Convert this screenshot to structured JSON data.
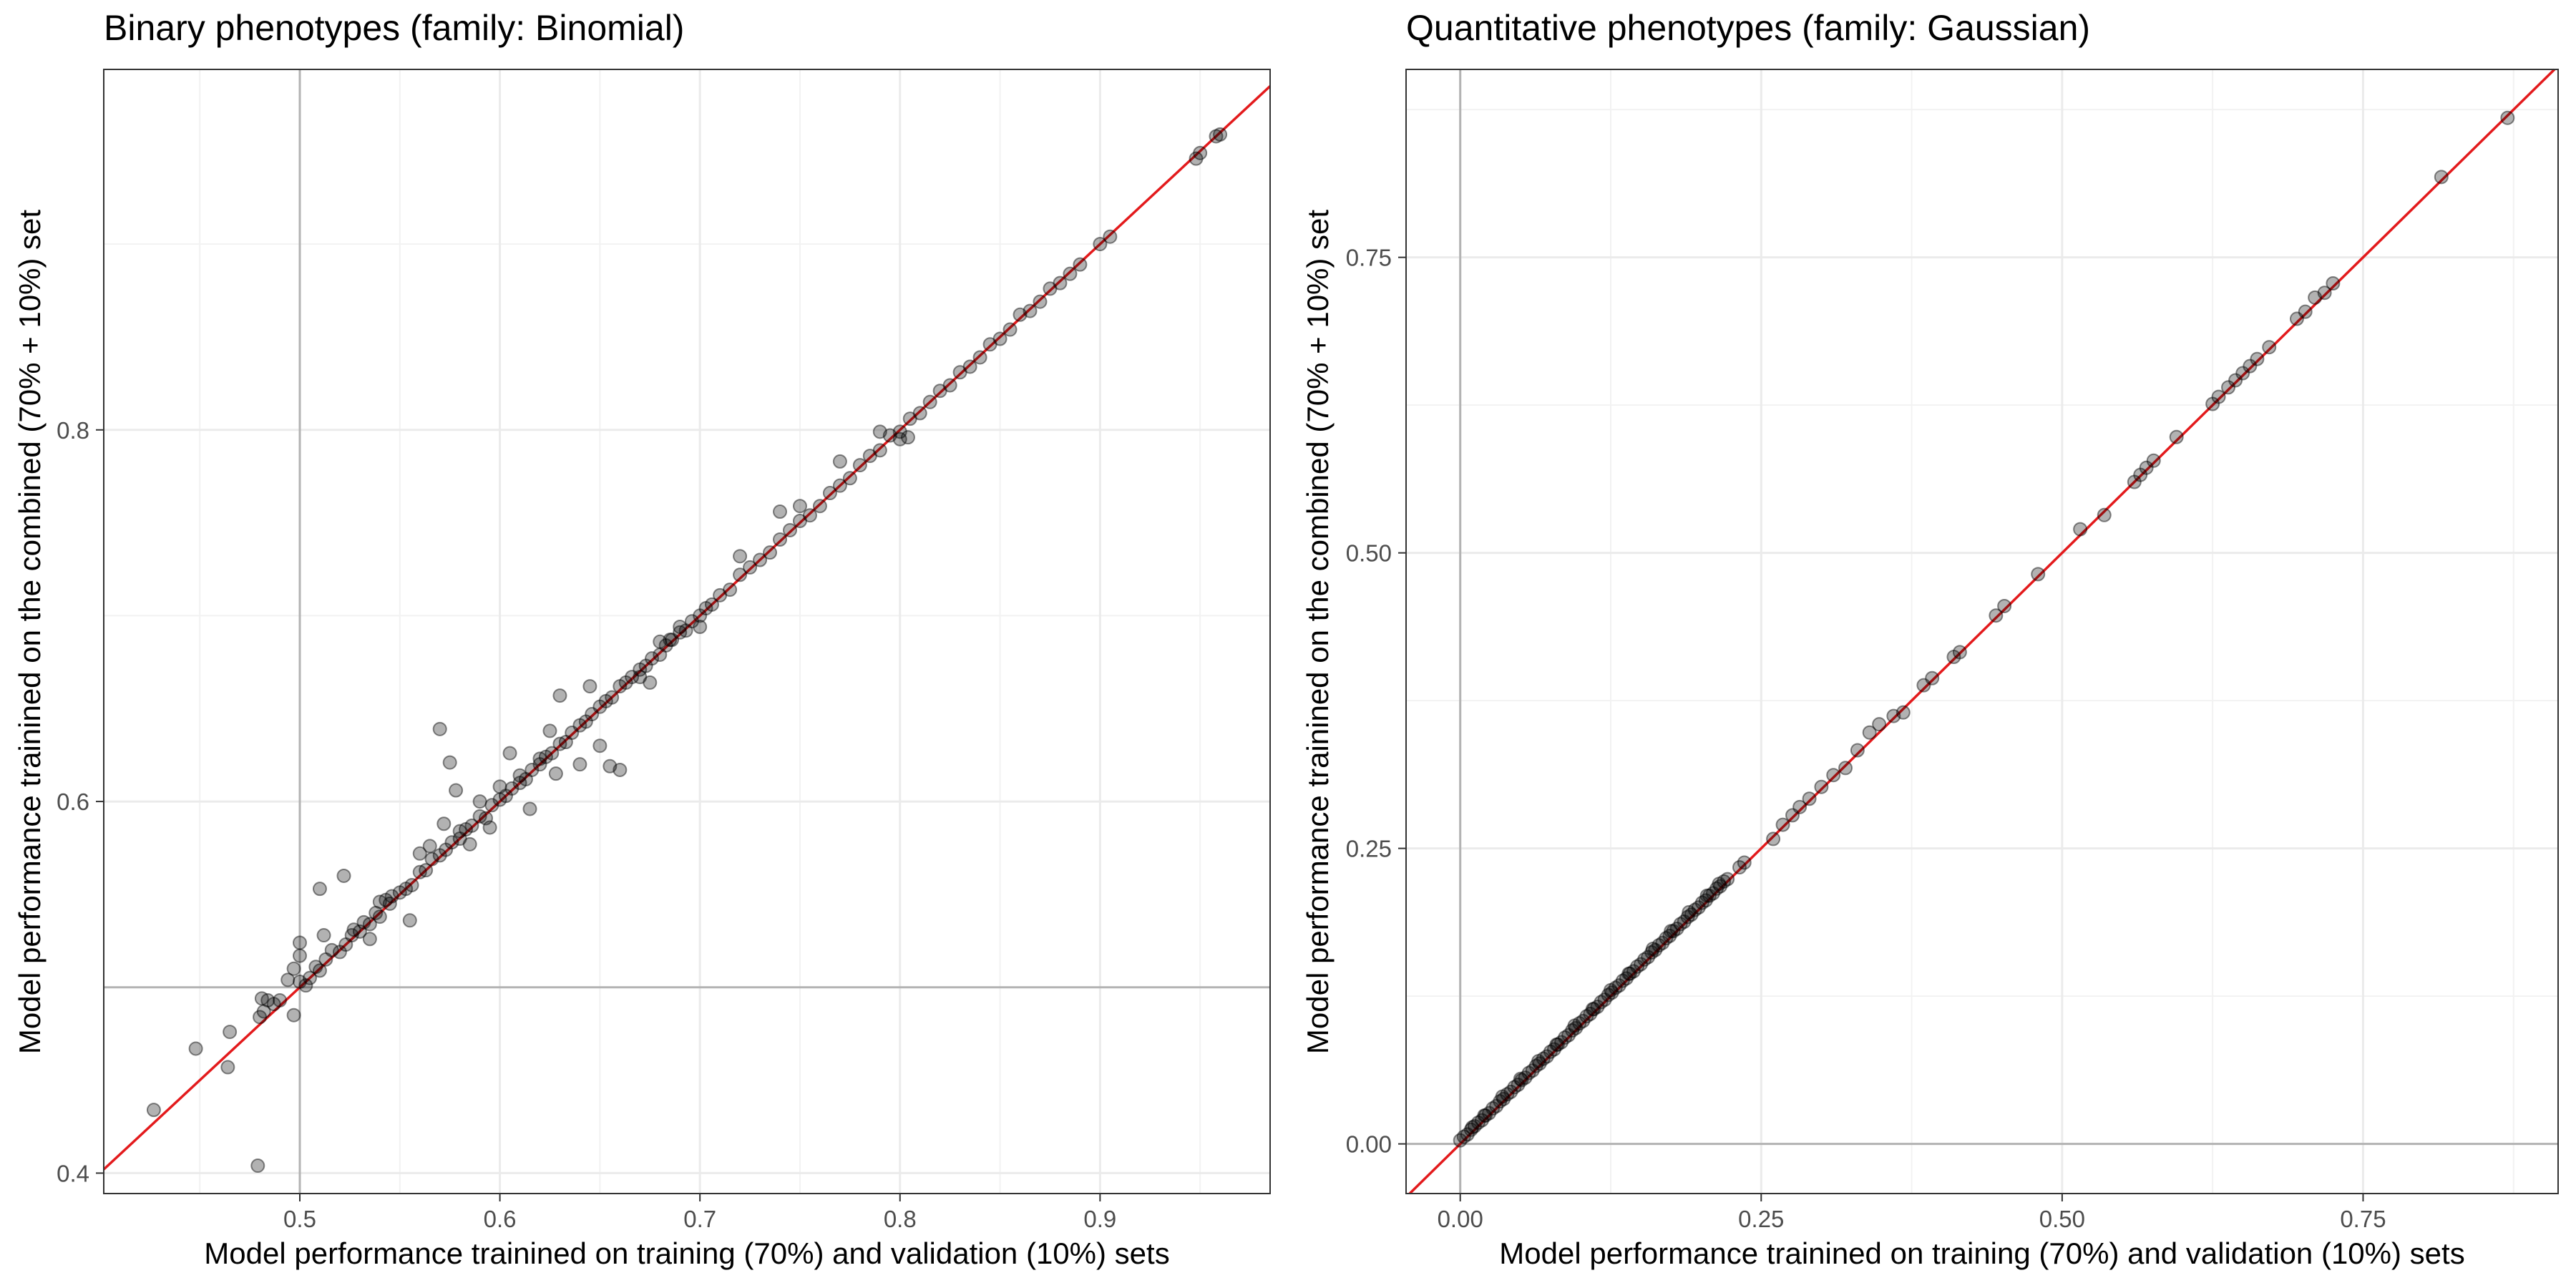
{
  "chart_data": [
    {
      "type": "scatter",
      "title": "Binary phenotypes (family: Binomial)",
      "xlabel": "Model performance trainined on training (70%) and validation (10%) sets",
      "ylabel": "Model performance trainined on the combined (70% + 10%) set",
      "xlim": [
        0.402,
        0.985
      ],
      "ylim": [
        0.389,
        0.994
      ],
      "x_ticks": [
        0.5,
        0.6,
        0.7,
        0.8,
        0.9
      ],
      "x_tick_labels": [
        "0.5",
        "0.6",
        "0.7",
        "0.8",
        "0.9"
      ],
      "y_ticks": [
        0.4,
        0.6,
        0.8
      ],
      "y_tick_labels": [
        "0.4",
        "0.6",
        "0.8"
      ],
      "reference_lines": {
        "vertical_x": 0.5,
        "horizontal_y": 0.5,
        "color": "#b3b3b3"
      },
      "identity_line": {
        "slope": 1,
        "intercept": 0,
        "color": "#e31a1c"
      },
      "grid": true,
      "point_color": "#000000",
      "point_opacity": 0.3,
      "series": [
        {
          "x": [
            0.427,
            0.448,
            0.464,
            0.465,
            0.48,
            0.481,
            0.482,
            0.484,
            0.487,
            0.49,
            0.494,
            0.497,
            0.5,
            0.5,
            0.503,
            0.505,
            0.508,
            0.51,
            0.513,
            0.516,
            0.52,
            0.523,
            0.526,
            0.53,
            0.532,
            0.535,
            0.538,
            0.54,
            0.543,
            0.546,
            0.55,
            0.553,
            0.556,
            0.56,
            0.563,
            0.566,
            0.57,
            0.573,
            0.576,
            0.58,
            0.583,
            0.586,
            0.59,
            0.593,
            0.596,
            0.6,
            0.603,
            0.606,
            0.61,
            0.613,
            0.616,
            0.62,
            0.623,
            0.626,
            0.63,
            0.633,
            0.636,
            0.64,
            0.643,
            0.646,
            0.65,
            0.653,
            0.656,
            0.66,
            0.663,
            0.666,
            0.67,
            0.673,
            0.676,
            0.68,
            0.683,
            0.686,
            0.69,
            0.693,
            0.696,
            0.7,
            0.703,
            0.706,
            0.71,
            0.715,
            0.72,
            0.725,
            0.73,
            0.735,
            0.74,
            0.745,
            0.75,
            0.755,
            0.76,
            0.765,
            0.77,
            0.775,
            0.78,
            0.785,
            0.79,
            0.795,
            0.8,
            0.805,
            0.81,
            0.815,
            0.82,
            0.825,
            0.83,
            0.835,
            0.84,
            0.845,
            0.85,
            0.855,
            0.86,
            0.865,
            0.87,
            0.875,
            0.88,
            0.885,
            0.89,
            0.9,
            0.905,
            0.948,
            0.95,
            0.958,
            0.96,
            0.479,
            0.497,
            0.5,
            0.51,
            0.512,
            0.522,
            0.527,
            0.535,
            0.54,
            0.545,
            0.555,
            0.56,
            0.565,
            0.57,
            0.572,
            0.575,
            0.578,
            0.58,
            0.585,
            0.59,
            0.595,
            0.6,
            0.605,
            0.61,
            0.615,
            0.62,
            0.625,
            0.628,
            0.63,
            0.64,
            0.645,
            0.65,
            0.655,
            0.66,
            0.67,
            0.675,
            0.68,
            0.685,
            0.69,
            0.7,
            0.72,
            0.74,
            0.75,
            0.77,
            0.79,
            0.8,
            0.804
          ],
          "y": [
            0.434,
            0.467,
            0.457,
            0.476,
            0.484,
            0.494,
            0.487,
            0.493,
            0.491,
            0.493,
            0.504,
            0.51,
            0.503,
            0.524,
            0.501,
            0.505,
            0.511,
            0.509,
            0.515,
            0.52,
            0.519,
            0.523,
            0.528,
            0.53,
            0.535,
            0.534,
            0.54,
            0.538,
            0.547,
            0.549,
            0.551,
            0.553,
            0.555,
            0.562,
            0.563,
            0.569,
            0.571,
            0.574,
            0.578,
            0.58,
            0.585,
            0.587,
            0.592,
            0.591,
            0.598,
            0.601,
            0.603,
            0.607,
            0.61,
            0.612,
            0.617,
            0.62,
            0.624,
            0.626,
            0.631,
            0.632,
            0.637,
            0.641,
            0.643,
            0.647,
            0.651,
            0.654,
            0.656,
            0.662,
            0.664,
            0.667,
            0.671,
            0.673,
            0.677,
            0.679,
            0.684,
            0.687,
            0.691,
            0.692,
            0.697,
            0.7,
            0.704,
            0.706,
            0.711,
            0.714,
            0.722,
            0.726,
            0.73,
            0.734,
            0.741,
            0.746,
            0.751,
            0.754,
            0.759,
            0.766,
            0.77,
            0.774,
            0.781,
            0.786,
            0.789,
            0.797,
            0.799,
            0.806,
            0.809,
            0.815,
            0.821,
            0.824,
            0.831,
            0.834,
            0.839,
            0.846,
            0.849,
            0.854,
            0.862,
            0.864,
            0.869,
            0.876,
            0.879,
            0.884,
            0.889,
            0.9,
            0.904,
            0.946,
            0.949,
            0.958,
            0.959,
            0.404,
            0.485,
            0.517,
            0.553,
            0.528,
            0.56,
            0.531,
            0.526,
            0.546,
            0.545,
            0.536,
            0.572,
            0.576,
            0.639,
            0.588,
            0.621,
            0.606,
            0.584,
            0.577,
            0.6,
            0.586,
            0.608,
            0.626,
            0.614,
            0.596,
            0.623,
            0.638,
            0.615,
            0.657,
            0.62,
            0.662,
            0.63,
            0.619,
            0.617,
            0.667,
            0.664,
            0.686,
            0.687,
            0.694,
            0.694,
            0.732,
            0.756,
            0.759,
            0.783,
            0.799,
            0.795,
            0.796
          ]
        }
      ]
    },
    {
      "type": "scatter",
      "title": "Quantitative phenotypes (family: Gaussian)",
      "xlabel": "Model performance trainined on training (70%) and validation (10%) sets",
      "ylabel": "Model performance trainined on the combined (70% + 10%) set",
      "xlim": [
        -0.045,
        0.912
      ],
      "ylim": [
        -0.042,
        0.909
      ],
      "x_ticks": [
        0,
        0.25,
        0.5,
        0.75
      ],
      "x_tick_labels": [
        "0.00",
        "0.25",
        "0.50",
        "0.75"
      ],
      "y_ticks": [
        0,
        0.25,
        0.5,
        0.75
      ],
      "y_tick_labels": [
        "0.00",
        "0.25",
        "0.50",
        "0.75"
      ],
      "reference_lines": {
        "vertical_x": 0,
        "horizontal_y": 0,
        "color": "#b3b3b3"
      },
      "identity_line": {
        "slope": 1,
        "intercept": 0,
        "color": "#e31a1c"
      },
      "grid": true,
      "point_color": "#000000",
      "point_opacity": 0.3,
      "series": [
        {
          "x": [
            0.0,
            0.003,
            0.006,
            0.009,
            0.012,
            0.015,
            0.018,
            0.021,
            0.024,
            0.027,
            0.03,
            0.033,
            0.036,
            0.039,
            0.042,
            0.045,
            0.048,
            0.051,
            0.054,
            0.057,
            0.06,
            0.063,
            0.066,
            0.069,
            0.072,
            0.075,
            0.078,
            0.081,
            0.084,
            0.087,
            0.09,
            0.093,
            0.096,
            0.099,
            0.102,
            0.105,
            0.108,
            0.111,
            0.114,
            0.117,
            0.12,
            0.123,
            0.126,
            0.129,
            0.132,
            0.135,
            0.138,
            0.141,
            0.144,
            0.147,
            0.15,
            0.153,
            0.156,
            0.159,
            0.162,
            0.165,
            0.168,
            0.171,
            0.174,
            0.177,
            0.18,
            0.183,
            0.186,
            0.189,
            0.192,
            0.195,
            0.198,
            0.201,
            0.204,
            0.207,
            0.21,
            0.213,
            0.216,
            0.219,
            0.222,
            0.232,
            0.236,
            0.26,
            0.268,
            0.276,
            0.282,
            0.29,
            0.3,
            0.31,
            0.32,
            0.33,
            0.34,
            0.348,
            0.36,
            0.368,
            0.385,
            0.392,
            0.41,
            0.415,
            0.445,
            0.452,
            0.48,
            0.515,
            0.535,
            0.56,
            0.565,
            0.57,
            0.576,
            0.595,
            0.625,
            0.63,
            0.638,
            0.644,
            0.65,
            0.656,
            0.662,
            0.672,
            0.695,
            0.702,
            0.71,
            0.718,
            0.725,
            0.815,
            0.87,
            0.01,
            0.02,
            0.035,
            0.05,
            0.065,
            0.08,
            0.095,
            0.11,
            0.125,
            0.14,
            0.16,
            0.175,
            0.19,
            0.205,
            0.215
          ],
          "y": [
            0.003,
            0.006,
            0.008,
            0.012,
            0.015,
            0.018,
            0.02,
            0.024,
            0.026,
            0.03,
            0.032,
            0.036,
            0.038,
            0.042,
            0.044,
            0.048,
            0.05,
            0.054,
            0.056,
            0.06,
            0.062,
            0.066,
            0.068,
            0.072,
            0.074,
            0.078,
            0.08,
            0.084,
            0.086,
            0.09,
            0.092,
            0.096,
            0.098,
            0.102,
            0.104,
            0.108,
            0.11,
            0.114,
            0.116,
            0.12,
            0.122,
            0.126,
            0.128,
            0.132,
            0.134,
            0.138,
            0.14,
            0.144,
            0.146,
            0.15,
            0.152,
            0.156,
            0.158,
            0.162,
            0.164,
            0.168,
            0.17,
            0.174,
            0.176,
            0.18,
            0.182,
            0.186,
            0.188,
            0.192,
            0.194,
            0.198,
            0.2,
            0.204,
            0.206,
            0.21,
            0.212,
            0.216,
            0.218,
            0.222,
            0.224,
            0.234,
            0.238,
            0.258,
            0.27,
            0.278,
            0.285,
            0.292,
            0.302,
            0.312,
            0.318,
            0.333,
            0.348,
            0.355,
            0.362,
            0.365,
            0.388,
            0.394,
            0.412,
            0.416,
            0.447,
            0.455,
            0.482,
            0.52,
            0.532,
            0.56,
            0.566,
            0.572,
            0.578,
            0.598,
            0.626,
            0.632,
            0.64,
            0.646,
            0.652,
            0.658,
            0.664,
            0.674,
            0.698,
            0.704,
            0.716,
            0.72,
            0.728,
            0.818,
            0.868,
            0.014,
            0.024,
            0.04,
            0.055,
            0.07,
            0.084,
            0.1,
            0.114,
            0.13,
            0.144,
            0.165,
            0.18,
            0.196,
            0.21,
            0.22
          ]
        }
      ]
    }
  ]
}
